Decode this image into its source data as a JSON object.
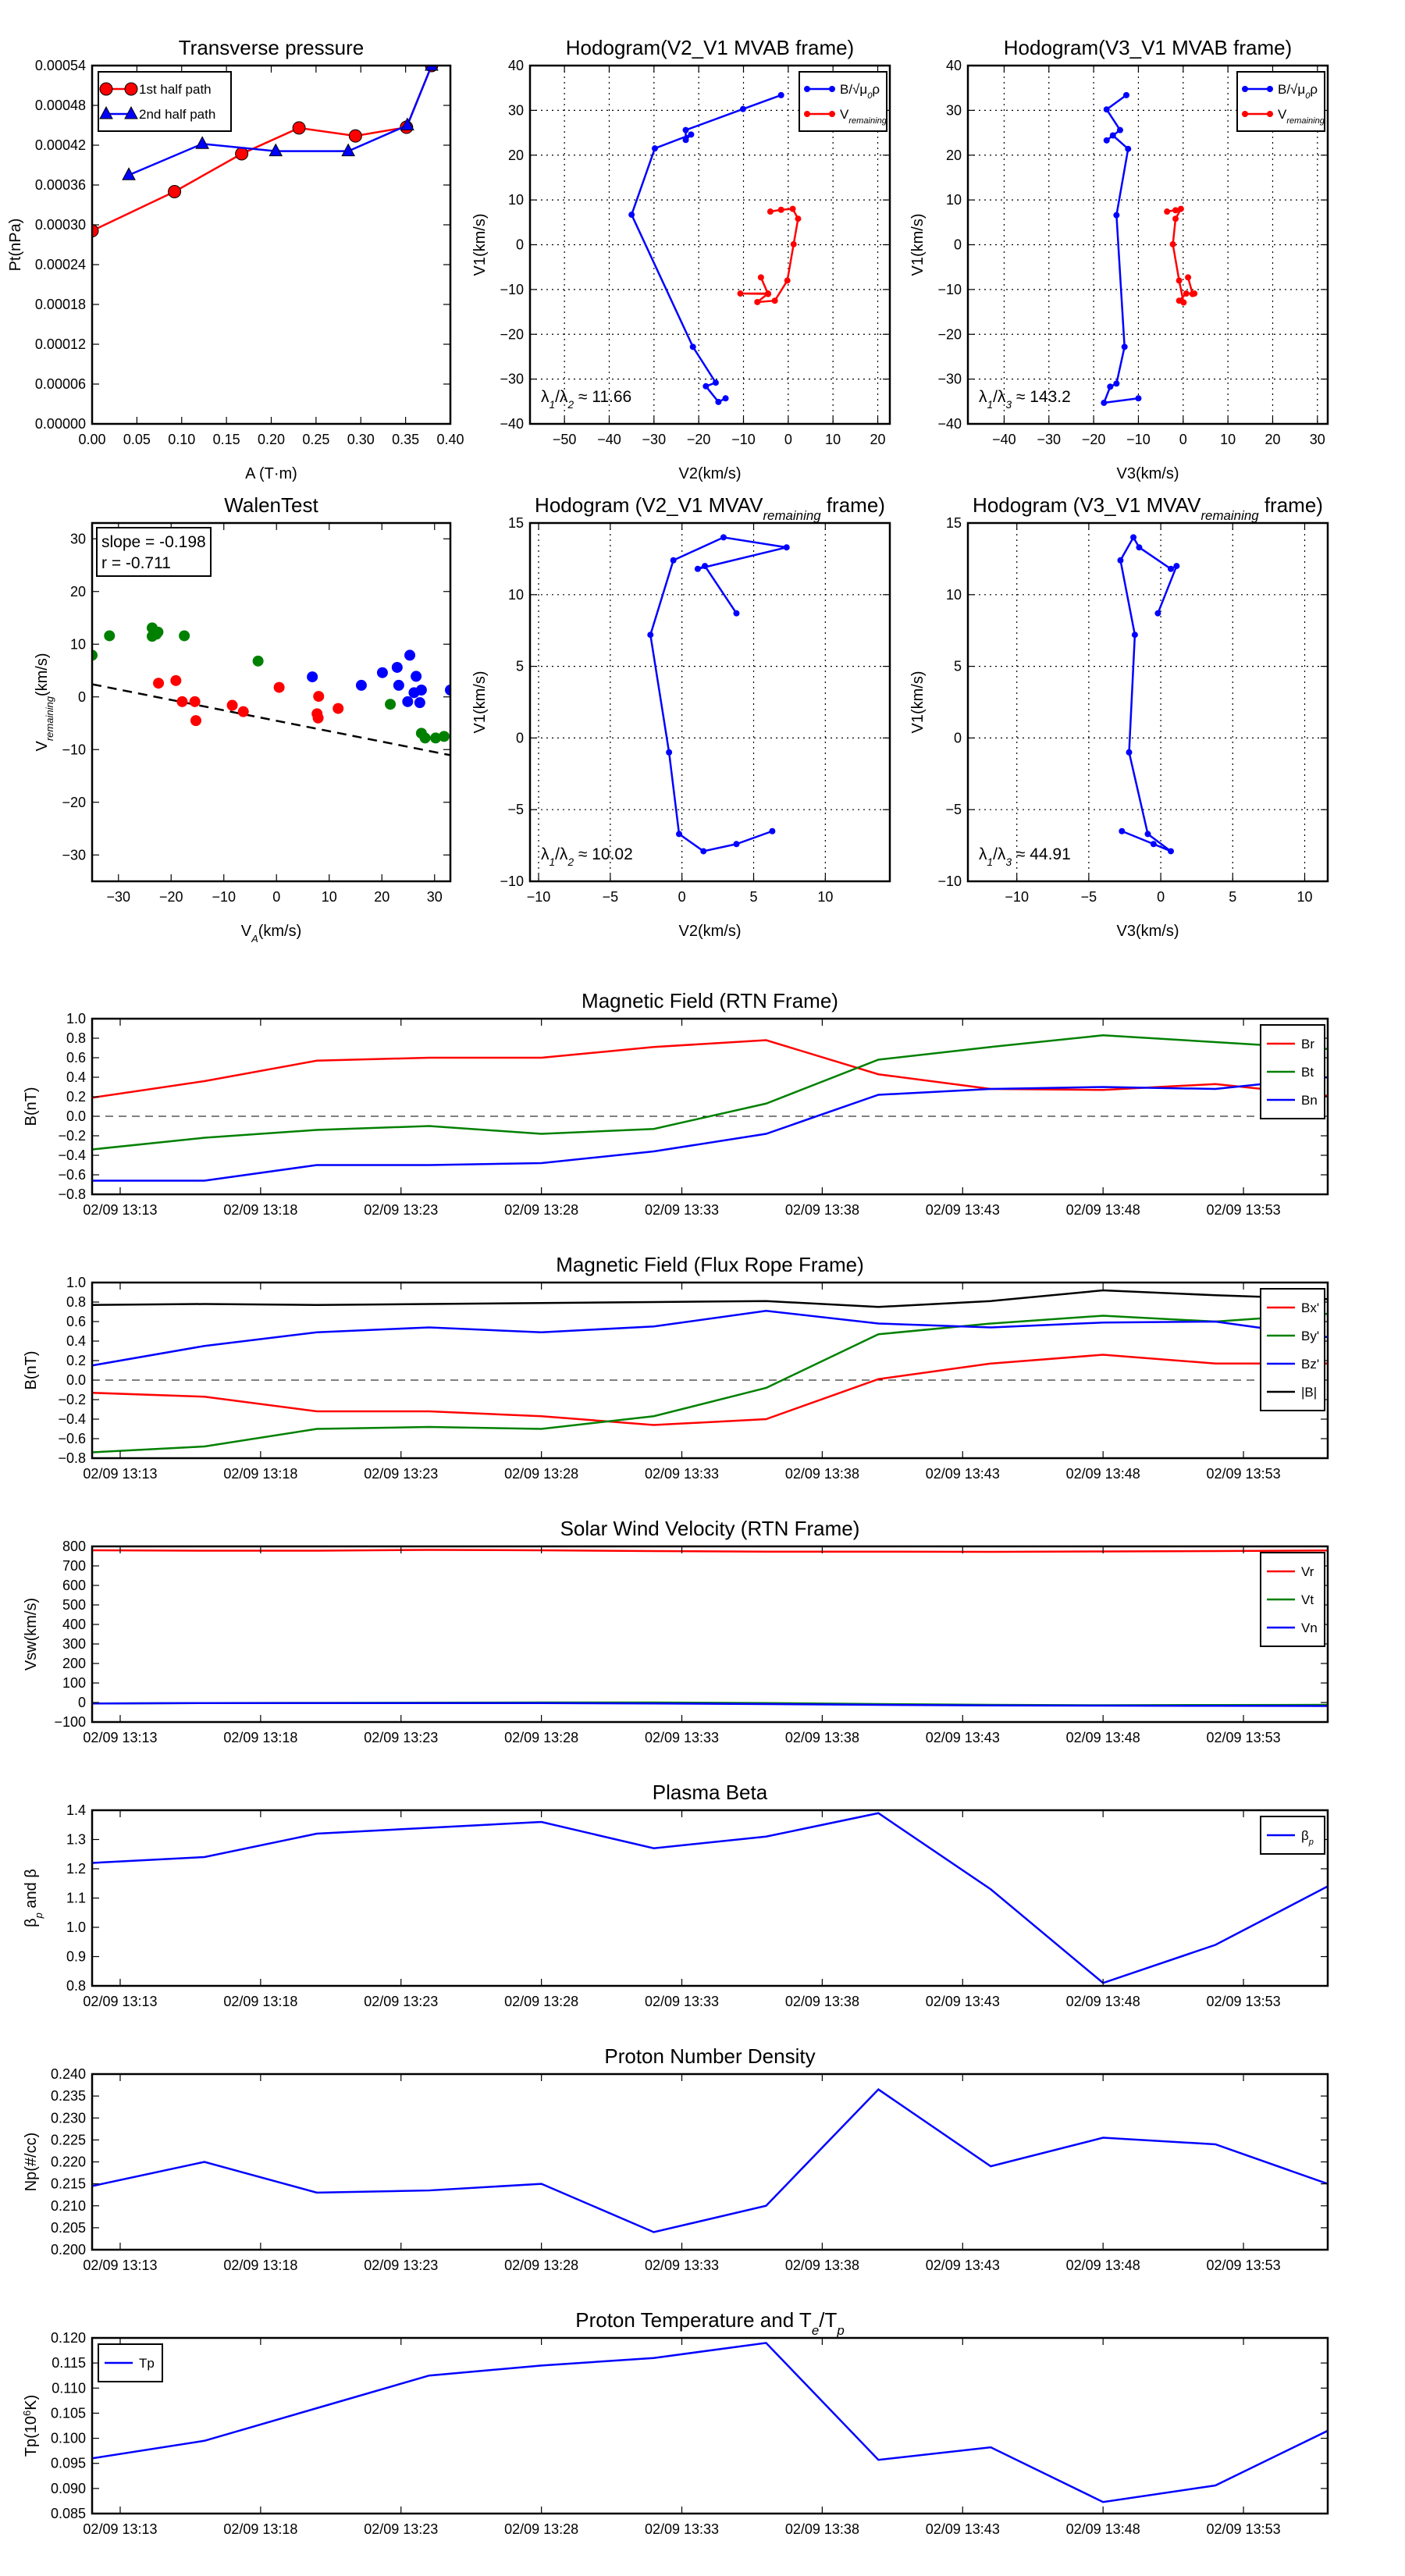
{
  "figure": {
    "background": "#ffffff"
  },
  "chart_data": [
    {
      "id": "tp",
      "type": "line",
      "title": "Transverse pressure",
      "xlabel": "A (T·m)",
      "ylabel": "Pt(nPa)",
      "xlim": [
        0,
        0.4
      ],
      "ylim": [
        0,
        0.00054
      ],
      "grid": false,
      "xticks": [
        "0.00",
        "0.05",
        "0.10",
        "0.15",
        "0.20",
        "0.25",
        "0.30",
        "0.35",
        "0.40"
      ],
      "yticks": [
        "0.00000",
        "0.00006",
        "0.00012",
        "0.00018",
        "0.00024",
        "0.00030",
        "0.00036",
        "0.00042",
        "0.00048",
        "0.00054"
      ],
      "legend": "top-left",
      "series": [
        {
          "label": "1st half path",
          "color": "#ff0000",
          "marker": "circle",
          "x": [
            0.0,
            0.092,
            0.167,
            0.231,
            0.294,
            0.351,
            0.379
          ],
          "y": [
            0.000291,
            0.00035,
            0.000407,
            0.000446,
            0.000434,
            0.000447,
            0.00054
          ]
        },
        {
          "label": "2nd half path",
          "color": "#0000ff",
          "marker": "triangle",
          "x": [
            0.041,
            0.123,
            0.205,
            0.286,
            0.352,
            0.379
          ],
          "y": [
            0.000375,
            0.000422,
            0.000411,
            0.000411,
            0.00045,
            0.00054
          ]
        }
      ]
    },
    {
      "id": "h1",
      "type": "line",
      "title": "Hodogram(V2_V1 MVAB frame)",
      "xlabel": "V2(km/s)",
      "ylabel": "V1(km/s)",
      "xlim": [
        -57.7,
        22.7
      ],
      "ylim": [
        -40,
        40
      ],
      "grid": true,
      "xticks": [
        "−50",
        "−40",
        "−30",
        "−20",
        "−10",
        "0",
        "10",
        "20"
      ],
      "yticks": [
        "−40",
        "−30",
        "−20",
        "−10",
        "0",
        "10",
        "20",
        "30",
        "40"
      ],
      "legend": "top-right",
      "annotation": {
        "text": "λ_{1}/λ_{2} ≈ 11.66",
        "position": "bottom-left"
      },
      "series": [
        {
          "label": "B/√μ_{0}ρ",
          "color": "#0000ff",
          "marker": "dot",
          "x": [
            -1.6,
            -10.1,
            -22.9,
            -22.9,
            -21.7,
            -29.8,
            -35.0,
            -21.3,
            -16.2,
            -18.4,
            -15.6,
            -14.0
          ],
          "y": [
            33.4,
            30.3,
            25.6,
            23.4,
            24.6,
            21.5,
            6.7,
            -22.8,
            -30.8,
            -31.6,
            -35.1,
            -34.3
          ]
        },
        {
          "label": "V_{remaining}",
          "color": "#ff0000",
          "marker": "dot",
          "x": [
            -4.0,
            -1.6,
            1.0,
            2.2,
            1.2,
            -0.2,
            -3.0,
            -6.9,
            -4.5,
            -10.7,
            -4.5,
            -6.1
          ],
          "y": [
            7.4,
            7.8,
            8.0,
            5.8,
            0.1,
            -8.0,
            -12.5,
            -12.8,
            -10.9,
            -10.9,
            -11.0,
            -7.3
          ]
        }
      ]
    },
    {
      "id": "h2",
      "type": "line",
      "title": "Hodogram(V3_V1 MVAB frame)",
      "xlabel": "V3(km/s)",
      "ylabel": "V1(km/s)",
      "xlim": [
        -48.1,
        32.3
      ],
      "ylim": [
        -40,
        40
      ],
      "grid": true,
      "xticks": [
        "−40",
        "−30",
        "−20",
        "−10",
        "0",
        "10",
        "20",
        "30"
      ],
      "yticks": [
        "−40",
        "−30",
        "−20",
        "−10",
        "0",
        "10",
        "20",
        "30",
        "40"
      ],
      "legend": "top-right",
      "annotation": {
        "text": "λ_{1}/λ_{3} ≈ 143.2",
        "position": "bottom-left"
      },
      "series": [
        {
          "label": "B/√μ_{0}ρ",
          "color": "#0000ff",
          "marker": "dot",
          "x": [
            -12.7,
            -17.1,
            -14.1,
            -17.1,
            -15.7,
            -12.3,
            -14.9,
            -13.1,
            -14.9,
            -16.3,
            -17.7,
            -10.0
          ],
          "y": [
            33.4,
            30.2,
            25.6,
            23.3,
            24.4,
            21.4,
            6.6,
            -22.8,
            -31.0,
            -31.7,
            -35.3,
            -34.3
          ]
        },
        {
          "label": "V_{remaining}",
          "color": "#ff0000",
          "marker": "dot",
          "x": [
            -3.6,
            -1.7,
            -0.5,
            -1.7,
            -2.3,
            -0.9,
            0.1,
            -0.9,
            0.7,
            2.5,
            2.1,
            1.1
          ],
          "y": [
            7.4,
            7.7,
            8.0,
            5.8,
            0.1,
            -8.0,
            -12.9,
            -12.5,
            -10.9,
            -10.9,
            -11.0,
            -7.3
          ]
        }
      ]
    },
    {
      "id": "walen",
      "type": "scatter",
      "title": "WalenTest",
      "xlabel": "V_{A}(km/s)",
      "ylabel": "V_{remaining}(km/s)",
      "xlim": [
        -35,
        33
      ],
      "ylim": [
        -35,
        33
      ],
      "grid": false,
      "xticks": [
        "−30",
        "−20",
        "−10",
        "0",
        "10",
        "20",
        "30"
      ],
      "yticks": [
        "−30",
        "−20",
        "−10",
        "0",
        "10",
        "20",
        "30"
      ],
      "fit": {
        "slope": -0.198,
        "intercept": -4.5,
        "style": "dashed",
        "color": "#000000"
      },
      "textbox": {
        "lines": [
          "slope = -0.198",
          "r = -0.711"
        ],
        "position": "top-left"
      },
      "series": [
        {
          "color": "#008000",
          "marker": "bigdot",
          "line": false,
          "x": [
            -35,
            -31.7,
            -23.6,
            -23.6,
            -22.5,
            -22.8,
            -17.5,
            -3.5,
            21.6,
            27.5,
            28.2,
            30.2,
            31.8
          ],
          "y": [
            7.9,
            11.6,
            13.1,
            11.5,
            12.3,
            11.9,
            11.6,
            6.8,
            -1.4,
            -6.9,
            -7.8,
            -7.8,
            -7.5
          ]
        },
        {
          "color": "#ff0000",
          "marker": "bigdot",
          "line": false,
          "x": [
            -22.4,
            -19.1,
            -17.9,
            -15.5,
            -15.3,
            -8.4,
            -6.3,
            0.5,
            8.0,
            7.7,
            7.9,
            11.7
          ],
          "y": [
            2.6,
            3.1,
            -0.9,
            -0.9,
            -4.5,
            -1.6,
            -2.8,
            1.8,
            0.1,
            -3.2,
            -4.0,
            -2.2
          ]
        },
        {
          "color": "#0000ff",
          "marker": "bigdot",
          "line": false,
          "x": [
            6.8,
            16.1,
            20.1,
            22.9,
            23.2,
            25.3,
            26.5,
            24.9,
            26.1,
            27.2,
            27.5,
            33.0
          ],
          "y": [
            3.8,
            2.2,
            4.6,
            5.6,
            2.2,
            7.9,
            3.9,
            -0.9,
            0.8,
            -1.1,
            1.3,
            1.3
          ]
        }
      ]
    },
    {
      "id": "m1",
      "type": "line",
      "title": "Hodogram (V2_V1 MVAV_{remaining} frame)",
      "xlabel": "V2(km/s)",
      "ylabel": "V1(km/s)",
      "xlim": [
        -10.6,
        14.5
      ],
      "ylim": [
        -10,
        15
      ],
      "grid": true,
      "xticks": [
        "−10",
        "−5",
        "0",
        "5",
        "10"
      ],
      "yticks": [
        "−10",
        "−5",
        "0",
        "5",
        "10",
        "15"
      ],
      "annotation": {
        "text": "λ_{1}/λ_{2} ≈ 10.02",
        "position": "bottom-left"
      },
      "series": [
        {
          "color": "#0000ff",
          "marker": "dot",
          "x": [
            6.3,
            3.8,
            1.5,
            -0.2,
            -0.9,
            -2.2,
            -0.6,
            2.9,
            7.3,
            1.1,
            1.6,
            3.8
          ],
          "y": [
            -6.5,
            -7.4,
            -7.9,
            -6.7,
            -1.0,
            7.2,
            12.4,
            14.0,
            13.3,
            11.8,
            12.0,
            8.7
          ]
        }
      ]
    },
    {
      "id": "m2",
      "type": "line",
      "title": "Hodogram (V3_V1 MVAV_{remaining} frame)",
      "xlabel": "V3(km/s)",
      "ylabel": "V1(km/s)",
      "xlim": [
        -13.4,
        11.6
      ],
      "ylim": [
        -10,
        15
      ],
      "grid": true,
      "xticks": [
        "−10",
        "−5",
        "0",
        "5",
        "10"
      ],
      "yticks": [
        "−10",
        "−5",
        "0",
        "5",
        "10",
        "15"
      ],
      "annotation": {
        "text": "λ_{1}/λ_{3} ≈ 44.91",
        "position": "bottom-left"
      },
      "series": [
        {
          "color": "#0000ff",
          "marker": "dot",
          "x": [
            -2.7,
            -0.5,
            0.7,
            -0.9,
            -2.2,
            -1.8,
            -2.8,
            -1.9,
            -1.5,
            0.7,
            1.1,
            -0.2
          ],
          "y": [
            -6.5,
            -7.4,
            -7.9,
            -6.7,
            -1.0,
            7.2,
            12.4,
            14.0,
            13.3,
            11.8,
            12.0,
            8.7
          ]
        }
      ]
    },
    {
      "id": "rtn",
      "type": "line",
      "title": "Magnetic Field (RTN Frame)",
      "ylabel": "B(nT)",
      "time": true,
      "xlim": [
        "02/09 13:12",
        "02/09 13:56"
      ],
      "ylim": [
        -0.8,
        1.0
      ],
      "zero_line": true,
      "xticks": [
        "02/09 13:13",
        "02/09 13:18",
        "02/09 13:23",
        "02/09 13:28",
        "02/09 13:33",
        "02/09 13:38",
        "02/09 13:43",
        "02/09 13:48",
        "02/09 13:53"
      ],
      "yticks": [
        "−0.8",
        "−0.6",
        "−0.4",
        "−0.2",
        "0.0",
        "0.2",
        "0.4",
        "0.6",
        "0.8",
        "1.0"
      ],
      "legend": "top-right",
      "series": [
        {
          "label": "Br",
          "color": "#ff0000",
          "y": [
            0.19,
            0.36,
            0.57,
            0.6,
            0.6,
            0.71,
            0.78,
            0.43,
            0.28,
            0.27,
            0.33,
            0.21
          ]
        },
        {
          "label": "Bt",
          "color": "#008000",
          "y": [
            -0.34,
            -0.22,
            -0.14,
            -0.1,
            -0.18,
            -0.13,
            0.13,
            0.58,
            0.71,
            0.83,
            0.76,
            0.69
          ]
        },
        {
          "label": "Bn",
          "color": "#0000ff",
          "y": [
            -0.66,
            -0.66,
            -0.5,
            -0.5,
            -0.48,
            -0.36,
            -0.18,
            0.22,
            0.28,
            0.3,
            0.28,
            0.4
          ]
        }
      ]
    },
    {
      "id": "flux",
      "type": "line",
      "title": "Magnetic Field (Flux Rope Frame)",
      "ylabel": "B(nT)",
      "time": true,
      "xlim": [
        "02/09 13:12",
        "02/09 13:56"
      ],
      "ylim": [
        -0.8,
        1.0
      ],
      "zero_line": true,
      "xticks": [
        "02/09 13:13",
        "02/09 13:18",
        "02/09 13:23",
        "02/09 13:28",
        "02/09 13:33",
        "02/09 13:38",
        "02/09 13:43",
        "02/09 13:48",
        "02/09 13:53"
      ],
      "yticks": [
        "−0.8",
        "−0.6",
        "−0.4",
        "−0.2",
        "0.0",
        "0.2",
        "0.4",
        "0.6",
        "0.8",
        "1.0"
      ],
      "legend": "top-right",
      "series": [
        {
          "label": "Bx'",
          "color": "#ff0000",
          "y": [
            -0.13,
            -0.17,
            -0.32,
            -0.32,
            -0.37,
            -0.46,
            -0.4,
            0.01,
            0.17,
            0.26,
            0.17,
            0.17
          ]
        },
        {
          "label": "By'",
          "color": "#008000",
          "y": [
            -0.74,
            -0.68,
            -0.5,
            -0.48,
            -0.5,
            -0.37,
            -0.08,
            0.47,
            0.58,
            0.66,
            0.6,
            0.68
          ]
        },
        {
          "label": "Bz'",
          "color": "#0000ff",
          "y": [
            0.15,
            0.35,
            0.49,
            0.54,
            0.49,
            0.55,
            0.71,
            0.58,
            0.54,
            0.59,
            0.6,
            0.44
          ]
        },
        {
          "label": "|B|",
          "color": "#000000",
          "y": [
            0.77,
            0.78,
            0.77,
            0.78,
            0.79,
            0.8,
            0.81,
            0.75,
            0.81,
            0.92,
            0.87,
            0.83
          ]
        }
      ]
    },
    {
      "id": "vel",
      "type": "line",
      "title": "Solar Wind Velocity (RTN Frame)",
      "ylabel": "Vsw(km/s)",
      "time": true,
      "xlim": [
        "02/09 13:12",
        "02/09 13:56"
      ],
      "ylim": [
        -100,
        800
      ],
      "xticks": [
        "02/09 13:13",
        "02/09 13:18",
        "02/09 13:23",
        "02/09 13:28",
        "02/09 13:33",
        "02/09 13:38",
        "02/09 13:43",
        "02/09 13:48",
        "02/09 13:53"
      ],
      "yticks": [
        "−100",
        "0",
        "100",
        "200",
        "300",
        "400",
        "500",
        "600",
        "700",
        "800"
      ],
      "legend": "top-right",
      "series": [
        {
          "label": "Vr",
          "color": "#ff0000",
          "y": [
            780,
            778,
            778,
            782,
            780,
            776,
            773,
            773,
            772,
            774,
            776,
            779
          ]
        },
        {
          "label": "Vt",
          "color": "#008000",
          "y": [
            -5,
            -3,
            -2,
            -1,
            0,
            0,
            -3,
            -8,
            -12,
            -14,
            -13,
            -12
          ]
        },
        {
          "label": "Vn",
          "color": "#0000ff",
          "y": [
            -5,
            -3,
            -3,
            -3,
            -3,
            -5,
            -8,
            -12,
            -15,
            -16,
            -17,
            -18
          ]
        }
      ]
    },
    {
      "id": "beta",
      "type": "line",
      "title": "Plasma Beta",
      "ylabel": "β_{p} and β",
      "time": true,
      "xlim": [
        "02/09 13:12",
        "02/09 13:56"
      ],
      "ylim": [
        0.8,
        1.4
      ],
      "xticks": [
        "02/09 13:13",
        "02/09 13:18",
        "02/09 13:23",
        "02/09 13:28",
        "02/09 13:33",
        "02/09 13:38",
        "02/09 13:43",
        "02/09 13:48",
        "02/09 13:53"
      ],
      "yticks": [
        "0.8",
        "0.9",
        "1.0",
        "1.1",
        "1.2",
        "1.3",
        "1.4"
      ],
      "legend": "top-right",
      "series": [
        {
          "label": "β_{p}",
          "color": "#0000ff",
          "y": [
            1.22,
            1.24,
            1.32,
            1.34,
            1.36,
            1.27,
            1.31,
            1.39,
            1.13,
            0.81,
            0.94,
            1.14
          ]
        }
      ]
    },
    {
      "id": "np",
      "type": "line",
      "title": "Proton Number Density",
      "ylabel": "Np(#/cc)",
      "time": true,
      "xlim": [
        "02/09 13:12",
        "02/09 13:56"
      ],
      "ylim": [
        0.2,
        0.24
      ],
      "xticks": [
        "02/09 13:13",
        "02/09 13:18",
        "02/09 13:23",
        "02/09 13:28",
        "02/09 13:33",
        "02/09 13:38",
        "02/09 13:43",
        "02/09 13:48",
        "02/09 13:53"
      ],
      "yticks": [
        "0.200",
        "0.205",
        "0.210",
        "0.215",
        "0.220",
        "0.225",
        "0.230",
        "0.235",
        "0.240"
      ],
      "series": [
        {
          "color": "#0000ff",
          "y": [
            0.2145,
            0.22,
            0.213,
            0.2135,
            0.215,
            0.204,
            0.21,
            0.2365,
            0.219,
            0.2255,
            0.224,
            0.215
          ]
        }
      ]
    },
    {
      "id": "temp",
      "type": "line",
      "title": "Proton Temperature and T_{e}/T_{p}",
      "ylabel": "Tp(10^{6}K)",
      "time": true,
      "xlim": [
        "02/09 13:12",
        "02/09 13:56"
      ],
      "ylim": [
        0.085,
        0.12
      ],
      "xticks": [
        "02/09 13:13",
        "02/09 13:18",
        "02/09 13:23",
        "02/09 13:28",
        "02/09 13:33",
        "02/09 13:38",
        "02/09 13:43",
        "02/09 13:48",
        "02/09 13:53"
      ],
      "yticks": [
        "0.085",
        "0.090",
        "0.095",
        "0.100",
        "0.105",
        "0.110",
        "0.115",
        "0.120"
      ],
      "legend": "top-left",
      "series": [
        {
          "label": "Tp",
          "color": "#0000ff",
          "y": [
            0.096,
            0.0995,
            0.106,
            0.1125,
            0.1145,
            0.116,
            0.119,
            0.0957,
            0.0982,
            0.0873,
            0.0906,
            0.1015
          ]
        }
      ]
    }
  ],
  "time_points": [
    "02/09 13:12",
    "02/09 13:16",
    "02/09 13:20",
    "02/09 13:24",
    "02/09 13:28",
    "02/09 13:32",
    "02/09 13:36",
    "02/09 13:40",
    "02/09 13:44",
    "02/09 13:48",
    "02/09 13:52",
    "02/09 13:56"
  ]
}
